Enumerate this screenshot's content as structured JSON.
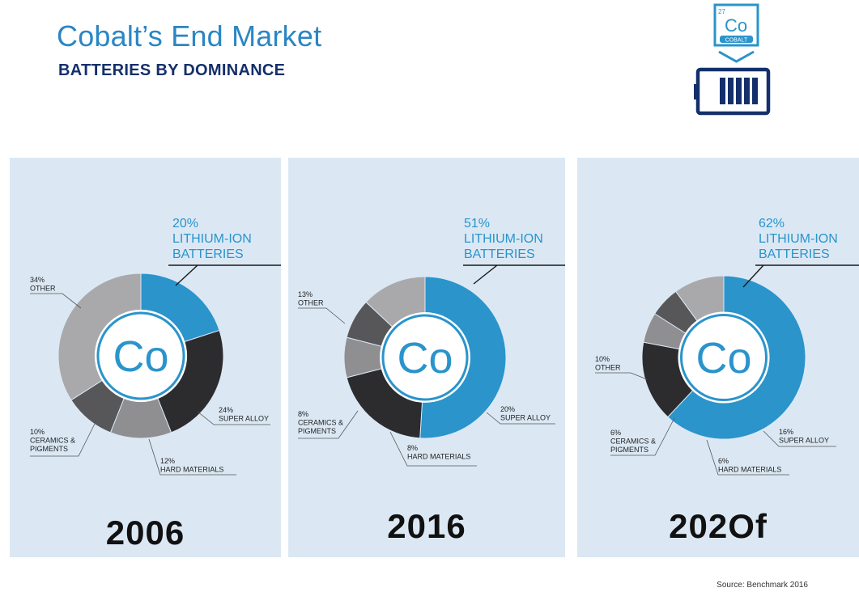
{
  "header": {
    "title": "Cobalt’s End Market",
    "subtitle": "BATTERIES BY DOMINANCE"
  },
  "logo": {
    "atomic_number": "27",
    "symbol": "Co",
    "name": "COBALT",
    "icon": "battery-icon"
  },
  "colors": {
    "lithium": "#2a94cb",
    "super_alloy": "#2c2c2e",
    "hard_materials": "#8f8f92",
    "ceramics": "#57575a",
    "other": "#a9a9ac",
    "panel": "#dbe8f4",
    "title": "#2a86c4",
    "subtitle": "#14306b"
  },
  "chart_data": [
    {
      "type": "pie",
      "center_label": "Co",
      "year_label": "2006",
      "slices": [
        {
          "category": "LITHIUM-ION BATTERIES",
          "value": 20,
          "label_lines": [
            "20%",
            "LITHIUM-ION",
            "BATTERIES"
          ]
        },
        {
          "category": "SUPER ALLOY",
          "value": 24,
          "label_lines": [
            "24%",
            "SUPER ALLOY"
          ]
        },
        {
          "category": "HARD MATERIALS",
          "value": 12,
          "label_lines": [
            "12%",
            "HARD MATERIALS"
          ]
        },
        {
          "category": "CERAMICS & PIGMENTS",
          "value": 10,
          "label_lines": [
            "10%",
            "CERAMICS &",
            "PIGMENTS"
          ]
        },
        {
          "category": "OTHER",
          "value": 34,
          "label_lines": [
            "34%",
            "OTHER"
          ]
        }
      ]
    },
    {
      "type": "pie",
      "center_label": "Co",
      "year_label": "2016",
      "slices": [
        {
          "category": "LITHIUM-ION BATTERIES",
          "value": 51,
          "label_lines": [
            "51%",
            "LITHIUM-ION",
            "BATTERIES"
          ]
        },
        {
          "category": "SUPER ALLOY",
          "value": 20,
          "label_lines": [
            "20%",
            "SUPER ALLOY"
          ]
        },
        {
          "category": "HARD MATERIALS",
          "value": 8,
          "label_lines": [
            "8%",
            "HARD MATERIALS"
          ]
        },
        {
          "category": "CERAMICS & PIGMENTS",
          "value": 8,
          "label_lines": [
            "8%",
            "CERAMICS &",
            "PIGMENTS"
          ]
        },
        {
          "category": "OTHER",
          "value": 13,
          "label_lines": [
            "13%",
            "OTHER"
          ]
        }
      ]
    },
    {
      "type": "pie",
      "center_label": "Co",
      "year_label": "202Of",
      "slices": [
        {
          "category": "LITHIUM-ION BATTERIES",
          "value": 62,
          "label_lines": [
            "62%",
            "LITHIUM-ION",
            "BATTERIES"
          ]
        },
        {
          "category": "SUPER ALLOY",
          "value": 16,
          "label_lines": [
            "16%",
            "SUPER ALLOY"
          ]
        },
        {
          "category": "HARD MATERIALS",
          "value": 6,
          "label_lines": [
            "6%",
            "HARD MATERIALS"
          ]
        },
        {
          "category": "CERAMICS & PIGMENTS",
          "value": 6,
          "label_lines": [
            "6%",
            "CERAMICS &",
            "PIGMENTS"
          ]
        },
        {
          "category": "OTHER",
          "value": 10,
          "label_lines": [
            "10%",
            "OTHER"
          ]
        }
      ]
    }
  ],
  "footer": {
    "source": "Source: Benchmark 2016"
  }
}
